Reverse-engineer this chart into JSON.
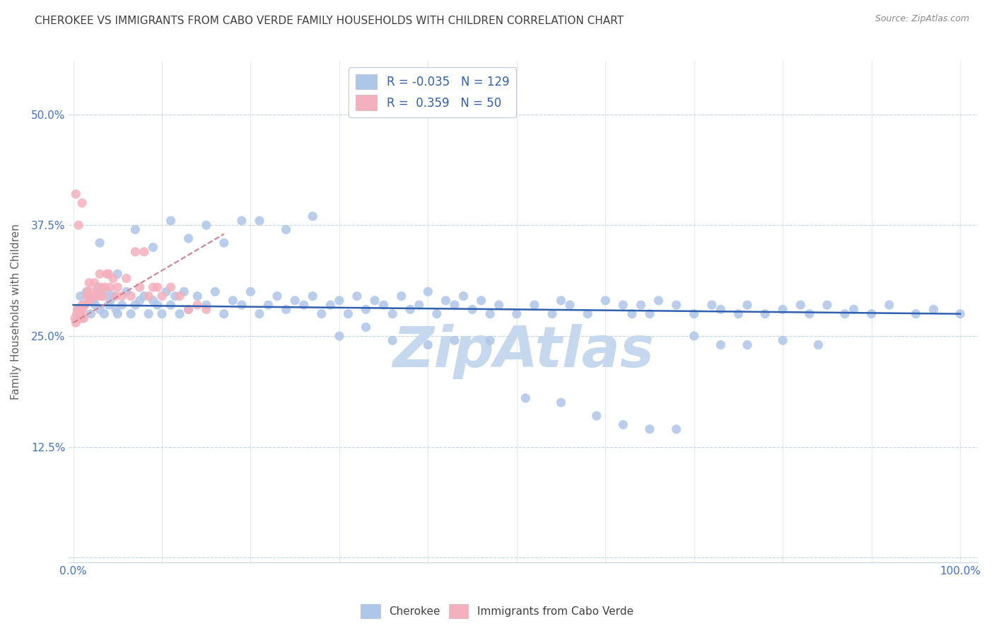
{
  "title": "CHEROKEE VS IMMIGRANTS FROM CABO VERDE FAMILY HOUSEHOLDS WITH CHILDREN CORRELATION CHART",
  "source": "Source: ZipAtlas.com",
  "ylabel": "Family Households with Children",
  "blue_color": "#aec6e8",
  "pink_color": "#f4b0bc",
  "blue_line_color": "#3060b0",
  "pink_line_color": "#d08090",
  "watermark": "ZipAtlas",
  "watermark_color": "#c5d8ee",
  "background_color": "#ffffff",
  "grid_color": "#c8d4de",
  "title_color": "#404040",
  "axis_label_color": "#4472c4",
  "source_color": "#888888",
  "ylabel_color": "#606060",
  "legend_text_color": "#3060b0",
  "ytick_vals": [
    0.0,
    0.125,
    0.25,
    0.375,
    0.5
  ],
  "ytick_labels": [
    "",
    "12.5%",
    "25.0%",
    "37.5%",
    "50.0%"
  ],
  "xtick_vals": [
    0.0,
    0.1,
    0.2,
    0.3,
    0.4,
    0.5,
    0.6,
    0.7,
    0.8,
    0.9,
    1.0
  ],
  "ylim": [
    -0.005,
    0.56
  ],
  "xlim": [
    -0.005,
    1.02
  ],
  "blue_x": [
    0.005,
    0.008,
    0.01,
    0.012,
    0.015,
    0.018,
    0.02,
    0.022,
    0.025,
    0.028,
    0.03,
    0.032,
    0.035,
    0.038,
    0.04,
    0.042,
    0.045,
    0.048,
    0.05,
    0.055,
    0.06,
    0.065,
    0.07,
    0.075,
    0.08,
    0.085,
    0.09,
    0.095,
    0.1,
    0.105,
    0.11,
    0.115,
    0.12,
    0.125,
    0.13,
    0.14,
    0.15,
    0.16,
    0.17,
    0.18,
    0.19,
    0.2,
    0.21,
    0.22,
    0.23,
    0.24,
    0.25,
    0.26,
    0.27,
    0.28,
    0.29,
    0.3,
    0.31,
    0.32,
    0.33,
    0.34,
    0.35,
    0.36,
    0.37,
    0.38,
    0.39,
    0.4,
    0.41,
    0.42,
    0.43,
    0.44,
    0.45,
    0.46,
    0.47,
    0.48,
    0.5,
    0.52,
    0.54,
    0.55,
    0.56,
    0.58,
    0.6,
    0.62,
    0.63,
    0.64,
    0.65,
    0.66,
    0.68,
    0.7,
    0.72,
    0.73,
    0.75,
    0.76,
    0.78,
    0.8,
    0.82,
    0.83,
    0.85,
    0.87,
    0.88,
    0.9,
    0.92,
    0.95,
    0.97,
    1.0,
    0.03,
    0.05,
    0.07,
    0.09,
    0.11,
    0.13,
    0.15,
    0.17,
    0.19,
    0.21,
    0.24,
    0.27,
    0.3,
    0.33,
    0.36,
    0.4,
    0.43,
    0.47,
    0.51,
    0.55,
    0.59,
    0.62,
    0.65,
    0.68,
    0.7,
    0.73,
    0.76,
    0.8,
    0.84
  ],
  "blue_y": [
    0.28,
    0.295,
    0.27,
    0.285,
    0.3,
    0.295,
    0.275,
    0.29,
    0.285,
    0.305,
    0.28,
    0.295,
    0.275,
    0.3,
    0.285,
    0.29,
    0.295,
    0.28,
    0.275,
    0.285,
    0.3,
    0.275,
    0.285,
    0.29,
    0.295,
    0.275,
    0.29,
    0.285,
    0.275,
    0.3,
    0.285,
    0.295,
    0.275,
    0.3,
    0.28,
    0.295,
    0.285,
    0.3,
    0.275,
    0.29,
    0.285,
    0.3,
    0.275,
    0.285,
    0.295,
    0.28,
    0.29,
    0.285,
    0.295,
    0.275,
    0.285,
    0.29,
    0.275,
    0.295,
    0.28,
    0.29,
    0.285,
    0.275,
    0.295,
    0.28,
    0.285,
    0.3,
    0.275,
    0.29,
    0.285,
    0.295,
    0.28,
    0.29,
    0.275,
    0.285,
    0.275,
    0.285,
    0.275,
    0.29,
    0.285,
    0.275,
    0.29,
    0.285,
    0.275,
    0.285,
    0.275,
    0.29,
    0.285,
    0.275,
    0.285,
    0.28,
    0.275,
    0.285,
    0.275,
    0.28,
    0.285,
    0.275,
    0.285,
    0.275,
    0.28,
    0.275,
    0.285,
    0.275,
    0.28,
    0.275,
    0.355,
    0.32,
    0.37,
    0.35,
    0.38,
    0.36,
    0.375,
    0.355,
    0.38,
    0.38,
    0.37,
    0.385,
    0.25,
    0.26,
    0.245,
    0.24,
    0.245,
    0.245,
    0.18,
    0.175,
    0.16,
    0.15,
    0.145,
    0.145,
    0.25,
    0.24,
    0.24,
    0.245,
    0.24
  ],
  "pink_x": [
    0.002,
    0.003,
    0.004,
    0.005,
    0.006,
    0.007,
    0.008,
    0.009,
    0.01,
    0.011,
    0.012,
    0.013,
    0.015,
    0.016,
    0.018,
    0.019,
    0.02,
    0.022,
    0.024,
    0.025,
    0.027,
    0.028,
    0.03,
    0.032,
    0.034,
    0.036,
    0.038,
    0.04,
    0.042,
    0.045,
    0.048,
    0.05,
    0.055,
    0.06,
    0.065,
    0.07,
    0.075,
    0.08,
    0.085,
    0.09,
    0.095,
    0.1,
    0.11,
    0.12,
    0.13,
    0.14,
    0.15,
    0.003,
    0.006,
    0.01
  ],
  "pink_y": [
    0.27,
    0.265,
    0.275,
    0.28,
    0.27,
    0.275,
    0.27,
    0.275,
    0.285,
    0.28,
    0.27,
    0.285,
    0.295,
    0.3,
    0.31,
    0.29,
    0.3,
    0.295,
    0.31,
    0.295,
    0.3,
    0.295,
    0.32,
    0.305,
    0.295,
    0.305,
    0.32,
    0.32,
    0.305,
    0.315,
    0.295,
    0.305,
    0.295,
    0.315,
    0.295,
    0.345,
    0.305,
    0.345,
    0.295,
    0.305,
    0.305,
    0.295,
    0.305,
    0.295,
    0.28,
    0.285,
    0.28,
    0.41,
    0.375,
    0.4
  ],
  "blue_trend_x": [
    0.0,
    1.0
  ],
  "blue_trend_y": [
    0.285,
    0.275
  ],
  "pink_trend_x": [
    0.0,
    0.17
  ],
  "pink_trend_y": [
    0.265,
    0.365
  ]
}
